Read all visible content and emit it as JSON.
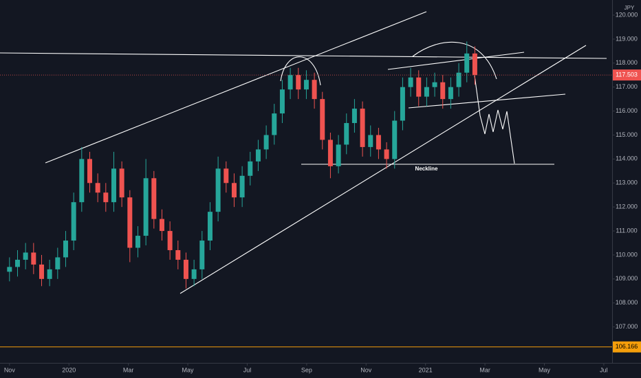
{
  "chart_data": {
    "type": "candlestick",
    "currency": "JPY",
    "annotation": "Neckline",
    "up_color": "#26a69a",
    "down_color": "#ef5350",
    "x": [
      0,
      0.27,
      0.54,
      0.81,
      1.08,
      1.35,
      1.62,
      1.89,
      2.16,
      2.43,
      2.7,
      2.97,
      3.24,
      3.51,
      3.78,
      4.05,
      4.32,
      4.59,
      4.86,
      5.13,
      5.4,
      5.67,
      5.94,
      6.21,
      6.48,
      6.75,
      7.02,
      7.29,
      7.56,
      7.83,
      8.1,
      8.37,
      8.64,
      8.91,
      9.18,
      9.45,
      9.72,
      9.99,
      10.26,
      10.53,
      10.8,
      11.07,
      11.34,
      11.61,
      11.88,
      12.15,
      12.42,
      12.69,
      12.96,
      13.23,
      13.5,
      13.77,
      14.04,
      14.31,
      14.58,
      14.85,
      15.12,
      15.39,
      15.66
    ],
    "open": [
      109.3,
      109.5,
      109.8,
      110.1,
      109.6,
      109.0,
      109.4,
      109.9,
      110.6,
      112.2,
      114.0,
      113.0,
      112.6,
      112.2,
      113.6,
      112.4,
      110.3,
      110.8,
      113.2,
      111.5,
      111.0,
      110.2,
      109.8,
      109.0,
      109.4,
      110.6,
      111.8,
      113.6,
      113.0,
      112.4,
      113.3,
      113.9,
      114.4,
      115.0,
      115.9,
      116.9,
      117.5,
      116.9,
      117.3,
      116.5,
      114.8,
      113.7,
      114.6,
      115.5,
      116.1,
      114.5,
      115.0,
      114.4,
      114.0,
      115.6,
      117.0,
      117.4,
      116.6,
      117.0,
      117.2,
      116.5,
      117.0,
      117.6,
      118.4
    ],
    "high": [
      109.9,
      110.2,
      110.5,
      110.5,
      110.0,
      109.8,
      110.3,
      111.0,
      112.6,
      114.5,
      114.3,
      113.4,
      113.0,
      114.3,
      113.9,
      112.7,
      111.2,
      114.0,
      113.5,
      111.9,
      111.4,
      110.6,
      110.1,
      109.8,
      111.0,
      112.2,
      114.1,
      113.9,
      113.4,
      113.7,
      114.3,
      114.8,
      115.4,
      116.3,
      117.3,
      117.8,
      117.8,
      117.7,
      117.6,
      116.8,
      115.1,
      115.0,
      115.9,
      116.5,
      116.4,
      115.4,
      115.3,
      114.7,
      116.0,
      117.4,
      117.8,
      117.7,
      117.4,
      117.6,
      117.5,
      117.4,
      118.0,
      118.9,
      118.7
    ],
    "low": [
      108.9,
      109.1,
      109.4,
      109.2,
      108.7,
      108.7,
      109.0,
      109.5,
      110.2,
      111.8,
      112.6,
      112.2,
      111.8,
      111.8,
      112.0,
      109.7,
      109.9,
      110.4,
      111.1,
      110.6,
      109.8,
      109.4,
      108.6,
      108.7,
      109.0,
      110.2,
      111.4,
      112.6,
      112.0,
      112.0,
      112.9,
      113.5,
      114.0,
      114.6,
      115.5,
      116.5,
      116.5,
      116.5,
      116.1,
      114.4,
      113.2,
      113.4,
      114.2,
      115.1,
      114.1,
      114.1,
      114.0,
      113.6,
      113.6,
      115.2,
      116.6,
      116.2,
      116.2,
      116.6,
      116.1,
      116.1,
      116.6,
      117.2,
      117.1
    ],
    "close": [
      109.5,
      109.8,
      110.1,
      109.6,
      109.0,
      109.4,
      109.9,
      110.6,
      112.2,
      114.0,
      113.0,
      112.6,
      112.2,
      113.6,
      112.4,
      110.3,
      110.8,
      113.2,
      111.5,
      111.0,
      110.2,
      109.8,
      109.0,
      109.4,
      110.6,
      111.8,
      113.6,
      113.0,
      112.4,
      113.3,
      113.9,
      114.4,
      115.0,
      115.9,
      116.9,
      117.5,
      116.9,
      117.3,
      116.5,
      114.8,
      113.7,
      114.6,
      115.5,
      116.1,
      114.5,
      115.0,
      114.4,
      114.0,
      115.6,
      117.0,
      117.4,
      116.6,
      117.0,
      117.2,
      116.5,
      117.0,
      117.6,
      118.4,
      117.5
    ],
    "xlim": [
      -0.32,
      20.28
    ],
    "xticks": [
      {
        "value": 0,
        "label": "Nov"
      },
      {
        "value": 2,
        "label": "2020"
      },
      {
        "value": 4,
        "label": "Mar"
      },
      {
        "value": 6,
        "label": "May"
      },
      {
        "value": 8,
        "label": "Jul"
      },
      {
        "value": 10,
        "label": "Sep"
      },
      {
        "value": 12,
        "label": "Nov"
      },
      {
        "value": 14,
        "label": "2021"
      },
      {
        "value": 16,
        "label": "Mar"
      },
      {
        "value": 18,
        "label": "May"
      },
      {
        "value": 20,
        "label": "Jul"
      }
    ],
    "ylim": [
      105.5,
      120.63
    ],
    "yticks": [
      {
        "value": 107,
        "label": "107.000"
      },
      {
        "value": 108,
        "label": "108.000"
      },
      {
        "value": 109,
        "label": "109.000"
      },
      {
        "value": 110,
        "label": "110.000"
      },
      {
        "value": 111,
        "label": "111.000"
      },
      {
        "value": 112,
        "label": "112.000"
      },
      {
        "value": 113,
        "label": "113.000"
      },
      {
        "value": 114,
        "label": "114.000"
      },
      {
        "value": 115,
        "label": "115.000"
      },
      {
        "value": 116,
        "label": "116.000"
      },
      {
        "value": 117,
        "label": "117.000"
      },
      {
        "value": 118,
        "label": "118.000"
      },
      {
        "value": 119,
        "label": "119.000"
      },
      {
        "value": 120,
        "label": "120.000"
      }
    ],
    "grid": false,
    "last_price": 117.503,
    "last_price_color": "#ef5350",
    "level": 106.166,
    "level_color": "#f59e0b"
  }
}
